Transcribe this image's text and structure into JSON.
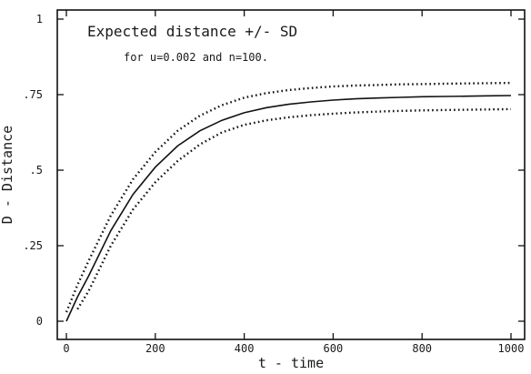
{
  "chart_data": {
    "type": "line",
    "annotation_title": "Expected distance +/- SD",
    "annotation_subtitle": "for u=0.002 and n=100.",
    "xlabel": "t - time",
    "ylabel": "D - Distance",
    "xlim": [
      0,
      1000
    ],
    "ylim": [
      0,
      1
    ],
    "x_ticks": [
      0,
      200,
      400,
      600,
      800,
      1000
    ],
    "x_tick_labels": [
      "0",
      "200",
      "400",
      "600",
      "800",
      "1000"
    ],
    "y_ticks": [
      0,
      0.25,
      0.5,
      0.75,
      1
    ],
    "y_tick_labels": [
      "0",
      ".25",
      ".5",
      ".75",
      "1"
    ],
    "grid": false,
    "colors": {
      "line": "#111111",
      "axis": "#111111",
      "background": "#ffffff"
    },
    "series": [
      {
        "style": "dotted",
        "x": [
          0,
          25,
          50,
          100,
          150,
          200,
          250,
          300,
          350,
          400,
          450,
          500,
          550,
          600,
          650,
          700,
          750,
          800,
          850,
          900,
          950,
          1000
        ],
        "y": [
          0.03,
          0.12,
          0.2,
          0.35,
          0.47,
          0.56,
          0.63,
          0.68,
          0.715,
          0.74,
          0.755,
          0.765,
          0.772,
          0.777,
          0.78,
          0.782,
          0.784,
          0.785,
          0.786,
          0.787,
          0.788,
          0.789
        ]
      },
      {
        "style": "solid",
        "x": [
          0,
          25,
          50,
          100,
          150,
          200,
          250,
          300,
          350,
          400,
          450,
          500,
          550,
          600,
          650,
          700,
          750,
          800,
          850,
          900,
          950,
          1000
        ],
        "y": [
          0.0,
          0.08,
          0.15,
          0.3,
          0.42,
          0.51,
          0.58,
          0.63,
          0.665,
          0.69,
          0.707,
          0.718,
          0.726,
          0.732,
          0.736,
          0.739,
          0.741,
          0.743,
          0.744,
          0.745,
          0.746,
          0.747
        ]
      },
      {
        "style": "dotted",
        "x": [
          25,
          50,
          100,
          150,
          200,
          250,
          300,
          350,
          400,
          450,
          500,
          550,
          600,
          650,
          700,
          750,
          800,
          850,
          900,
          950,
          1000
        ],
        "y": [
          0.04,
          0.1,
          0.25,
          0.37,
          0.46,
          0.53,
          0.585,
          0.625,
          0.65,
          0.665,
          0.675,
          0.682,
          0.687,
          0.691,
          0.694,
          0.696,
          0.698,
          0.699,
          0.7,
          0.701,
          0.702
        ]
      }
    ]
  }
}
